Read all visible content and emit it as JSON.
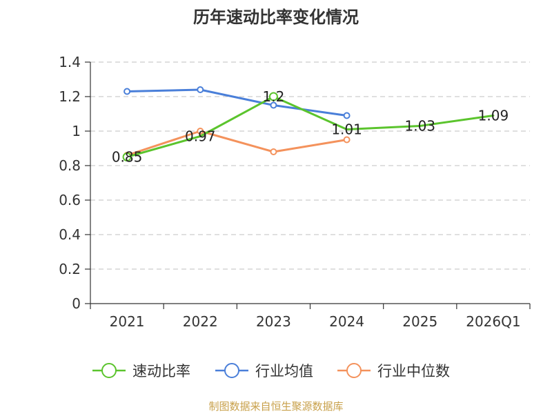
{
  "chart_data": {
    "type": "line",
    "title": "历年速动比率变化情况",
    "categories": [
      "2021",
      "2022",
      "2023",
      "2024",
      "2025",
      "2026Q1"
    ],
    "ylim": [
      0,
      1.4
    ],
    "yticks": [
      "0",
      "0.2",
      "0.4",
      "0.6",
      "0.8",
      "1",
      "1.2",
      "1.4"
    ],
    "grid": true,
    "legend_position": "bottom",
    "series": [
      {
        "name": "速动比率",
        "color": "#5bc42d",
        "values": [
          0.85,
          0.97,
          1.2,
          1.01,
          1.03,
          1.09
        ],
        "labels": [
          "0.85",
          "0.97",
          "1.2",
          "1.01",
          "1.03",
          "1.09"
        ]
      },
      {
        "name": "行业均值",
        "color": "#4a7fd9",
        "values": [
          1.23,
          1.24,
          1.15,
          1.09,
          null,
          null
        ]
      },
      {
        "name": "行业中位数",
        "color": "#f4925c",
        "values": [
          0.86,
          1.0,
          0.88,
          0.95,
          null,
          null
        ]
      }
    ],
    "source": "制图数据来自恒生聚源数据库"
  }
}
